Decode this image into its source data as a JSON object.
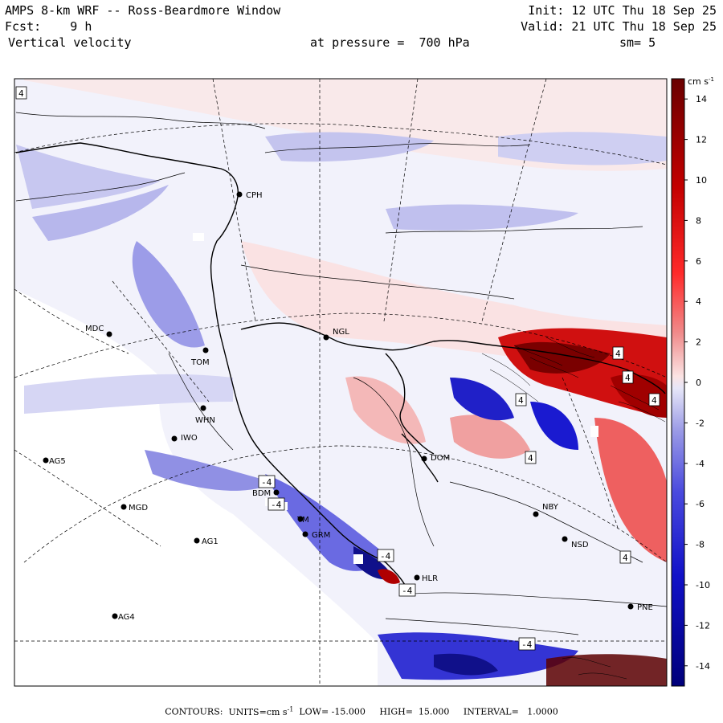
{
  "header": {
    "title": "AMPS 8-km WRF -- Ross-Beardmore Window",
    "forecast": "Fcst:    9 h",
    "variable": "Vertical velocity",
    "init": "Init: 12 UTC Thu 18 Sep 25",
    "valid": "Valid: 21 UTC Thu 18 Sep 25",
    "pressure": "at pressure =  700 hPa",
    "smoothing": "sm= 5"
  },
  "colorbar": {
    "units_label": "cm s",
    "units_exp": "-1",
    "ticks": [
      "14",
      "12",
      "10",
      "8",
      "6",
      "4",
      "2",
      "0",
      "-2",
      "-4",
      "-6",
      "-8",
      "-10",
      "-12",
      "-14"
    ],
    "tick_values": [
      14,
      12,
      10,
      8,
      6,
      4,
      2,
      0,
      -2,
      -4,
      -6,
      -8,
      -10,
      -12,
      -14
    ],
    "range": [
      -15,
      15
    ],
    "colors": {
      "max": "#6a0000",
      "positive_strong": "#e00000",
      "positive_weak": "#fbe3e3",
      "neutral": "#f4f4ff",
      "negative_weak": "#dcdcf6",
      "negative_strong": "#1a1ad0",
      "min": "#00007a"
    }
  },
  "stations": [
    {
      "id": "CPH",
      "label": "CPH"
    },
    {
      "id": "NGL",
      "label": "NGL"
    },
    {
      "id": "MDC",
      "label": "MDC"
    },
    {
      "id": "TOM",
      "label": "TOM"
    },
    {
      "id": "WHN",
      "label": "WHN"
    },
    {
      "id": "IWO",
      "label": "IWO"
    },
    {
      "id": "AG5",
      "label": "AG5"
    },
    {
      "id": "MGD",
      "label": "MGD"
    },
    {
      "id": "AG1",
      "label": "AG1"
    },
    {
      "id": "AG4",
      "label": "AG4"
    },
    {
      "id": "BDM",
      "label": "BDM"
    },
    {
      "id": "TM",
      "label": "TM"
    },
    {
      "id": "GRM",
      "label": "GRM"
    },
    {
      "id": "HLR",
      "label": "HLR"
    },
    {
      "id": "DOM",
      "label": "DOM"
    },
    {
      "id": "NBY",
      "label": "NBY"
    },
    {
      "id": "NSD",
      "label": "NSD"
    },
    {
      "id": "PNE",
      "label": "PNE"
    }
  ],
  "contour_labels": [
    "4",
    "4",
    "4",
    "4",
    "4",
    "-4",
    "-4",
    "-4",
    "-4",
    "4",
    "4",
    "-4"
  ],
  "footer": {
    "contours": "CONTOURS:",
    "units": "UNITS=cm s",
    "units_exp": "-1",
    "low": "LOW= -15.000",
    "high": "HIGH=  15.000",
    "interval": "INTERVAL=   1.0000"
  }
}
